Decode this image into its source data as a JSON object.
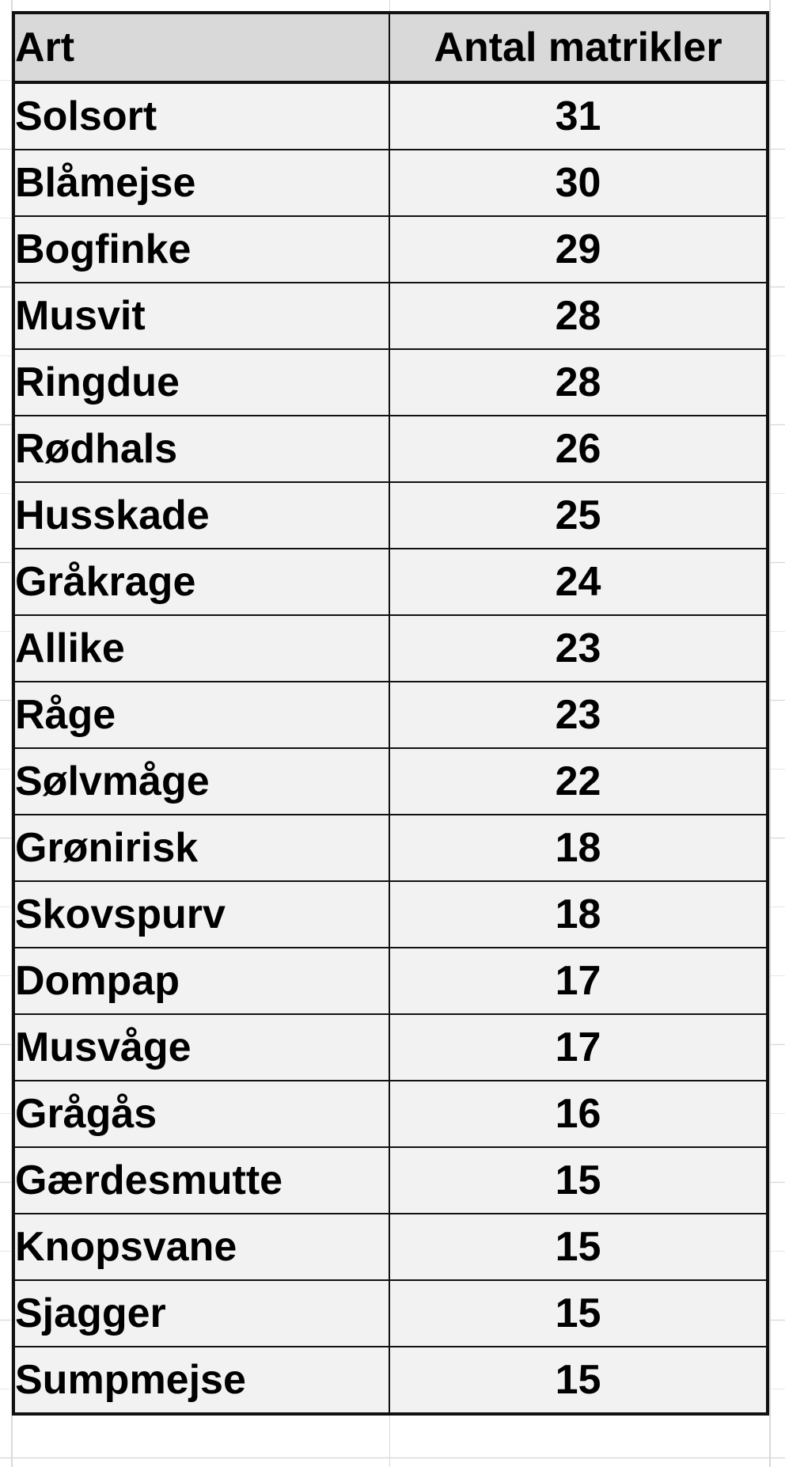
{
  "table": {
    "headers": [
      "Art",
      "Antal matrikler"
    ],
    "rows": [
      [
        "Solsort",
        "31"
      ],
      [
        "Blåmejse",
        "30"
      ],
      [
        "Bogfinke",
        "29"
      ],
      [
        "Musvit",
        "28"
      ],
      [
        "Ringdue",
        "28"
      ],
      [
        "Rødhals",
        "26"
      ],
      [
        "Husskade",
        "25"
      ],
      [
        "Gråkrage",
        "24"
      ],
      [
        "Allike",
        "23"
      ],
      [
        "Råge",
        "23"
      ],
      [
        "Sølvmåge",
        "22"
      ],
      [
        "Grønirisk",
        "18"
      ],
      [
        "Skovspurv",
        "18"
      ],
      [
        "Dompap",
        "17"
      ],
      [
        "Musvåge",
        "17"
      ],
      [
        "Grågås",
        "16"
      ],
      [
        "Gærdesmutte",
        "15"
      ],
      [
        "Knopsvane",
        "15"
      ],
      [
        "Sjagger",
        "15"
      ],
      [
        "Sumpmejse",
        "15"
      ]
    ]
  },
  "colors": {
    "header_fill": "#d9d9d9",
    "cell_fill": "#f2f2f2",
    "border": "#111111",
    "gridline": "#d9d9d9"
  }
}
